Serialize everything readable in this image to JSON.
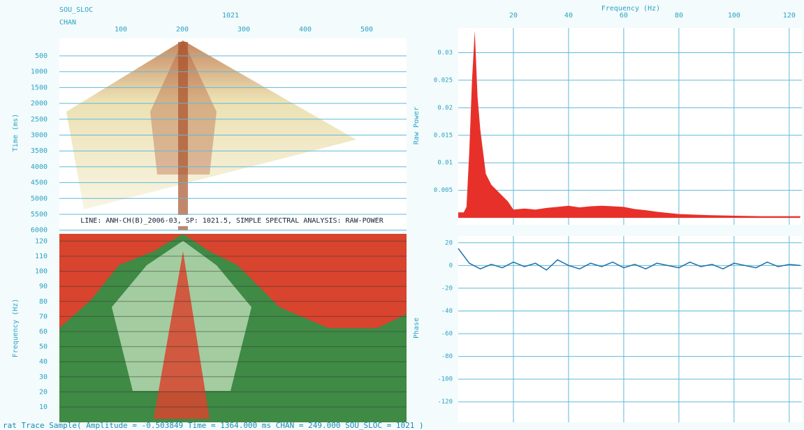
{
  "header": {
    "sloc_label": "SOU_SLOC",
    "chan_label": "CHAN",
    "sloc_value": "1021",
    "chan_ticks": [
      100,
      200,
      300,
      400,
      500
    ]
  },
  "gather": {
    "y_label": "Time (ms)",
    "yticks": [
      500,
      1000,
      1500,
      2000,
      2500,
      3000,
      3500,
      4000,
      4500,
      5000,
      5500,
      6000
    ],
    "caption": "LINE: ANH-CH(B)_2006-03, SP: 1021.5, SIMPLE SPECTRAL ANALYSIS: RAW-POWER"
  },
  "spectrogram": {
    "y_label": "Frequency (Hz)",
    "yticks": [
      10,
      20,
      30,
      40,
      50,
      60,
      70,
      80,
      90,
      100,
      110,
      120
    ]
  },
  "frequency_axis": {
    "label": "Frequency (Hz)",
    "xlim": [
      0,
      124.6
    ],
    "xticks": [
      20,
      40,
      60,
      80,
      100,
      120
    ]
  },
  "power": {
    "y_label": "Raw Power",
    "color": "#e8302a",
    "ylim": [
      -0.001,
      0.0345
    ],
    "yticks": [
      0.005,
      0.01,
      0.015,
      0.02,
      0.025,
      0.03
    ],
    "x": [
      0,
      2,
      3,
      4,
      5,
      6,
      7,
      8,
      9,
      10,
      12,
      14,
      16,
      18,
      20,
      24,
      28,
      32,
      36,
      40,
      44,
      48,
      52,
      56,
      60,
      64,
      68,
      72,
      76,
      80,
      90,
      100,
      110,
      124
    ],
    "values": [
      0.001,
      0.001,
      0.002,
      0.012,
      0.025,
      0.034,
      0.022,
      0.016,
      0.012,
      0.008,
      0.006,
      0.005,
      0.004,
      0.003,
      0.0015,
      0.0017,
      0.0015,
      0.0018,
      0.002,
      0.0022,
      0.0019,
      0.0021,
      0.0022,
      0.0021,
      0.002,
      0.0016,
      0.0014,
      0.0011,
      0.0009,
      0.0007,
      0.0005,
      0.0004,
      0.0003,
      0.0003
    ]
  },
  "phase": {
    "y_label": "Phase",
    "color": "#1f6fa8",
    "ylim": [
      -138,
      26
    ],
    "yticks": [
      20,
      0,
      -20,
      -40,
      -60,
      -80,
      -100,
      -120
    ],
    "x": [
      0,
      4,
      8,
      12,
      16,
      20,
      24,
      28,
      32,
      36,
      40,
      44,
      48,
      52,
      56,
      60,
      64,
      68,
      72,
      76,
      80,
      84,
      88,
      92,
      96,
      100,
      104,
      108,
      112,
      116,
      120,
      124
    ],
    "values": [
      15,
      2,
      -3,
      1,
      -2,
      3,
      -1,
      2,
      -4,
      5,
      0,
      -3,
      2,
      -1,
      3,
      -2,
      1,
      -3,
      2,
      0,
      -2,
      3,
      -1,
      1,
      -3,
      2,
      0,
      -2,
      3,
      -1,
      1,
      0
    ]
  },
  "status": "rat Trace Sample( Amplitude = -0.503849  Time = 1364.000 ms  CHAN = 249.000  SOU_SLOC = 1021 )"
}
